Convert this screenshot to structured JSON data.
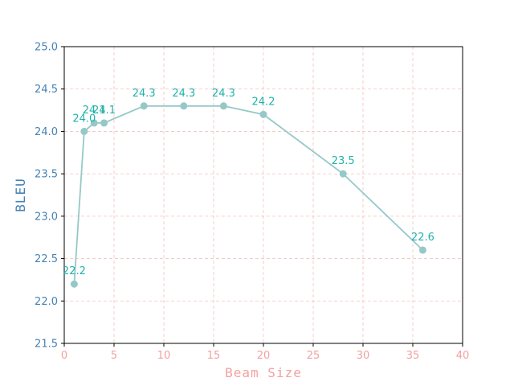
{
  "chart_data": {
    "type": "line",
    "title": "",
    "xlabel": "Beam Size",
    "ylabel": "BLEU",
    "xlim": [
      0,
      40
    ],
    "ylim": [
      21.5,
      25.0
    ],
    "x_ticks": [
      "0",
      "5",
      "10",
      "15",
      "20",
      "25",
      "30",
      "35",
      "40"
    ],
    "y_ticks": [
      "21.5",
      "22.0",
      "22.5",
      "23.0",
      "23.5",
      "24.0",
      "24.5",
      "25.0"
    ],
    "grid": true,
    "series": [
      {
        "x": [
          1,
          2,
          3,
          4,
          8,
          12,
          16,
          20,
          28,
          36
        ],
        "values": [
          22.2,
          24.0,
          24.1,
          24.1,
          24.3,
          24.3,
          24.3,
          24.2,
          23.5,
          22.6
        ],
        "labels": [
          "22.2",
          "24.0",
          "24.1",
          "24.1",
          "24.3",
          "24.3",
          "24.3",
          "24.2",
          "23.5",
          "22.6"
        ]
      }
    ],
    "colors": {
      "line": "#96c8c8",
      "data_label": "#20b2aa",
      "x_axis_text": "#f4a0a0",
      "y_axis_text": "#4682b4",
      "grid": "#f4c2c2"
    }
  }
}
